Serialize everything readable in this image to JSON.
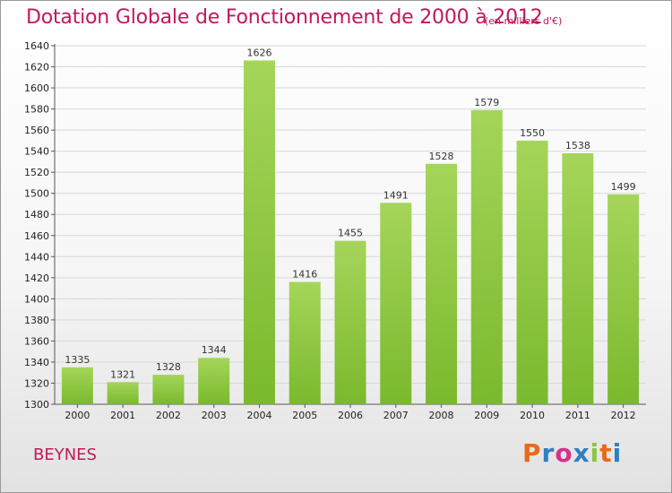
{
  "header": {
    "title": "Dotation Globale de Fonctionnement de 2000 à 2012",
    "subtitle": "(en milliers d'€)"
  },
  "footer": {
    "commune": "BEYNES",
    "logo_text": "Proxiti",
    "logo_colors": [
      "#e86a1a",
      "#2f7fc1",
      "#d6318a",
      "#2f7fc1",
      "#8cc63f",
      "#e86a1a",
      "#2f7fc1"
    ]
  },
  "chart_data": {
    "type": "bar",
    "categories": [
      "2000",
      "2001",
      "2002",
      "2003",
      "2004",
      "2005",
      "2006",
      "2007",
      "2008",
      "2009",
      "2010",
      "2011",
      "2012"
    ],
    "values": [
      1335,
      1321,
      1328,
      1344,
      1626,
      1416,
      1455,
      1491,
      1528,
      1579,
      1550,
      1538,
      1499
    ],
    "ylim": [
      1300,
      1640
    ],
    "yticks": [
      1300,
      1320,
      1340,
      1360,
      1380,
      1400,
      1420,
      1440,
      1460,
      1480,
      1500,
      1520,
      1540,
      1560,
      1580,
      1600,
      1620,
      1640
    ],
    "grid": true,
    "bar_color": "#7ab92d",
    "bar_color_light": "#a5d55a"
  }
}
